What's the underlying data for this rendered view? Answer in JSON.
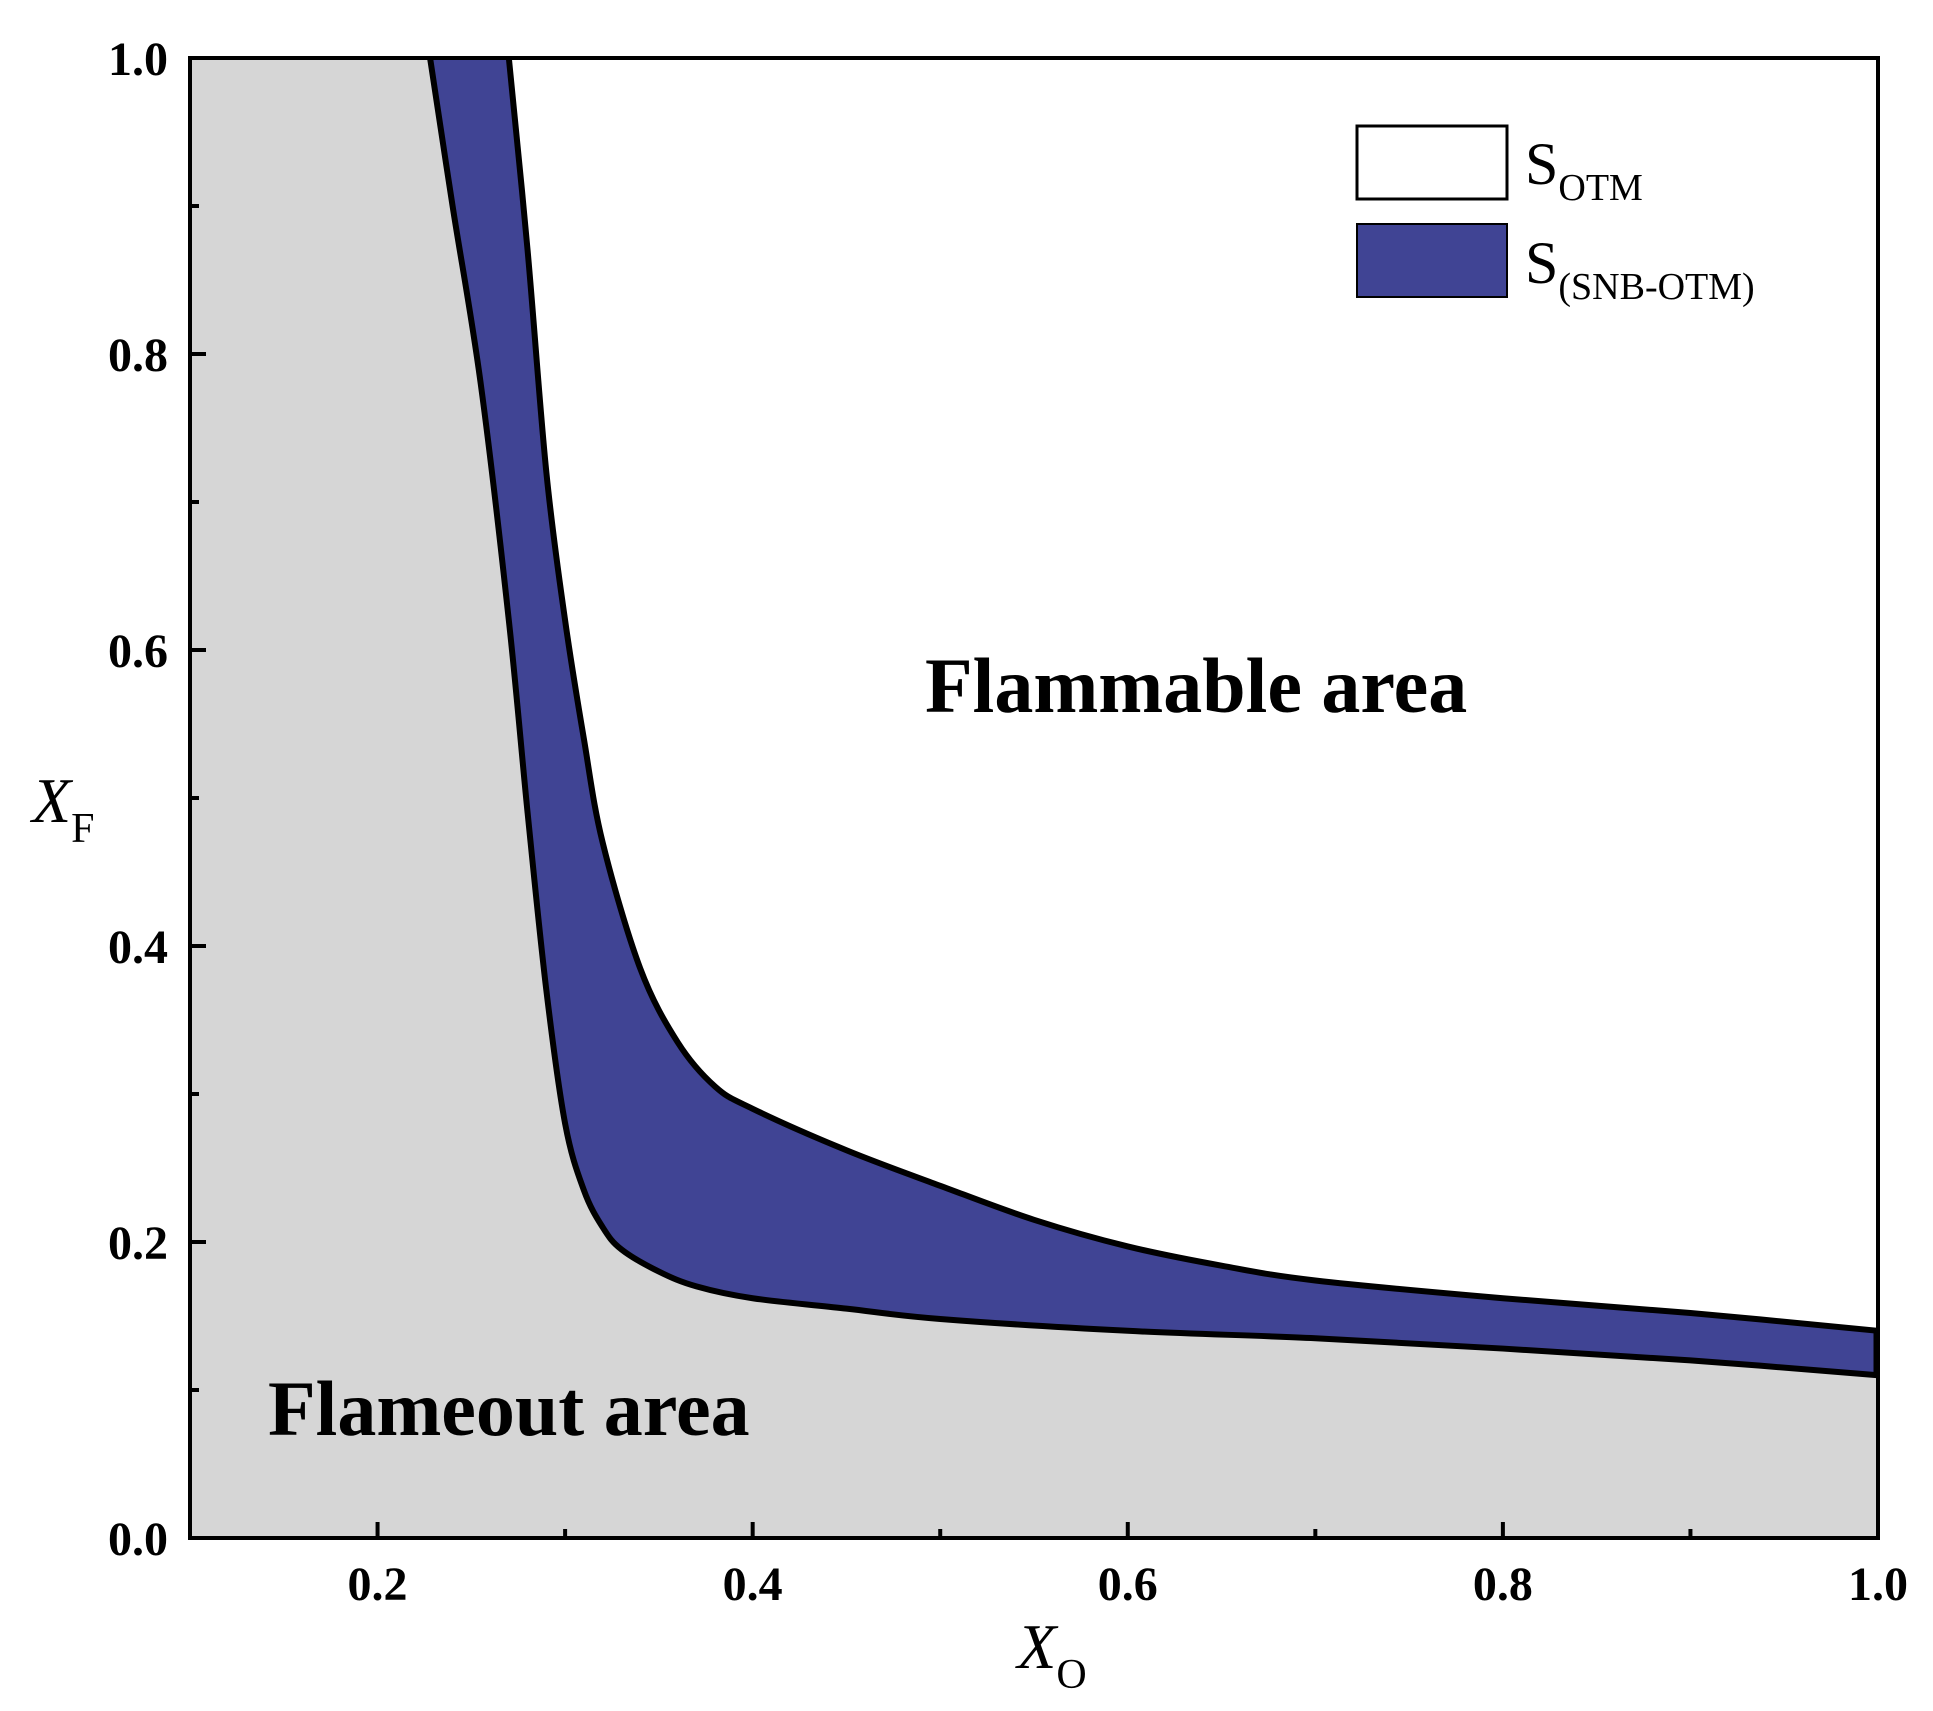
{
  "chart_data": {
    "type": "area",
    "xlabel": {
      "main": "X",
      "sub": "O"
    },
    "ylabel": {
      "main": "X",
      "sub": "F"
    },
    "xlim": [
      0.1,
      1.0
    ],
    "ylim": [
      0.0,
      1.0
    ],
    "x_ticks": [
      0.2,
      0.4,
      0.6,
      0.8,
      1.0
    ],
    "x_tick_labels": [
      "0.2",
      "0.4",
      "0.6",
      "0.8",
      "1.0"
    ],
    "y_ticks": [
      0.0,
      0.2,
      0.4,
      0.6,
      0.8,
      1.0
    ],
    "y_tick_labels": [
      "0.0",
      "0.2",
      "0.4",
      "0.6",
      "0.8",
      "1.0"
    ],
    "x_minor_ticks": [
      0.3,
      0.5,
      0.7,
      0.9
    ],
    "y_minor_ticks": [
      0.1,
      0.3,
      0.5,
      0.7,
      0.9
    ],
    "grid": false,
    "legend_position": "top-right",
    "region_labels": {
      "flammable": "Flammable area",
      "flameout": "Flameout area"
    },
    "series": [
      {
        "name": "S",
        "name_sub": "OTM",
        "color": "#ffffff",
        "role": "limit curve (SNB-OTM band lower boundary)",
        "x": [
          0.228,
          0.24,
          0.255,
          0.27,
          0.28,
          0.29,
          0.3,
          0.31,
          0.32,
          0.33,
          0.35,
          0.37,
          0.4,
          0.45,
          0.5,
          0.6,
          0.7,
          0.8,
          0.9,
          1.0
        ],
        "y": [
          1.0,
          0.9,
          0.78,
          0.62,
          0.49,
          0.37,
          0.28,
          0.235,
          0.21,
          0.195,
          0.18,
          0.17,
          0.162,
          0.155,
          0.148,
          0.14,
          0.135,
          0.128,
          0.12,
          0.11
        ]
      },
      {
        "name": "S",
        "name_sub": "(SNB-OTM)",
        "color": "#404494",
        "role": "limit curve (SNB-OTM band upper boundary)",
        "x": [
          0.27,
          0.28,
          0.29,
          0.3,
          0.31,
          0.32,
          0.34,
          0.36,
          0.38,
          0.4,
          0.45,
          0.5,
          0.55,
          0.6,
          0.65,
          0.7,
          0.8,
          0.9,
          1.0
        ],
        "y": [
          1.0,
          0.87,
          0.72,
          0.62,
          0.54,
          0.47,
          0.385,
          0.335,
          0.305,
          0.29,
          0.262,
          0.238,
          0.215,
          0.197,
          0.184,
          0.174,
          0.162,
          0.152,
          0.14
        ]
      }
    ],
    "colors": {
      "flameout_fill": "#d6d6d6",
      "band_fill": "#404494",
      "outline": "#000000"
    }
  }
}
